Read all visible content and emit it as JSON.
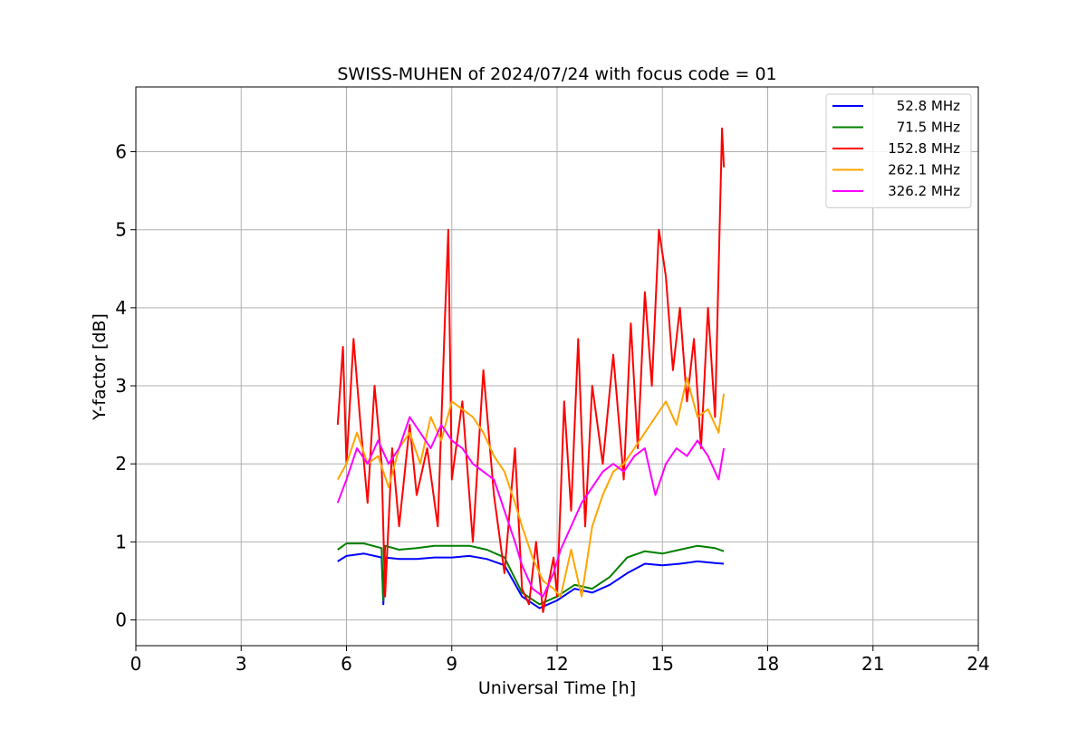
{
  "chart_data": {
    "type": "line",
    "title": "SWISS-MUHEN of 2024/07/24 with focus code = 01",
    "xlabel": "Universal Time [h]",
    "ylabel": "Y-factor [dB]",
    "xlim": [
      0,
      24
    ],
    "ylim": [
      -0.33,
      6.83
    ],
    "xticks": [
      0,
      3,
      6,
      9,
      12,
      15,
      18,
      21,
      24
    ],
    "yticks": [
      0,
      1,
      2,
      3,
      4,
      5,
      6
    ],
    "grid": true,
    "legend_position": "top-right",
    "series": [
      {
        "name": "52.8 MHz",
        "color": "#0000ff",
        "x": [
          5.75,
          6.0,
          6.5,
          7.0,
          7.05,
          7.1,
          7.5,
          8.0,
          8.5,
          9.0,
          9.5,
          10.0,
          10.5,
          11.0,
          11.5,
          12.0,
          12.5,
          13.0,
          13.5,
          14.0,
          14.5,
          15.0,
          15.5,
          16.0,
          16.5,
          16.75
        ],
        "y": [
          0.75,
          0.82,
          0.85,
          0.8,
          0.2,
          0.8,
          0.78,
          0.78,
          0.8,
          0.8,
          0.82,
          0.78,
          0.7,
          0.3,
          0.15,
          0.25,
          0.4,
          0.35,
          0.45,
          0.6,
          0.72,
          0.7,
          0.72,
          0.75,
          0.73,
          0.72
        ]
      },
      {
        "name": "71.5 MHz",
        "color": "#008000",
        "x": [
          5.75,
          6.0,
          6.5,
          7.0,
          7.05,
          7.1,
          7.5,
          8.0,
          8.5,
          9.0,
          9.5,
          10.0,
          10.5,
          11.0,
          11.5,
          12.0,
          12.5,
          13.0,
          13.5,
          14.0,
          14.5,
          15.0,
          15.5,
          16.0,
          16.5,
          16.75
        ],
        "y": [
          0.9,
          0.98,
          0.98,
          0.92,
          0.25,
          0.95,
          0.9,
          0.92,
          0.95,
          0.95,
          0.95,
          0.9,
          0.8,
          0.35,
          0.2,
          0.3,
          0.45,
          0.4,
          0.55,
          0.8,
          0.88,
          0.85,
          0.9,
          0.95,
          0.92,
          0.88
        ]
      },
      {
        "name": "152.8 MHz",
        "color": "#ff0000",
        "x": [
          5.75,
          5.9,
          6.0,
          6.2,
          6.4,
          6.6,
          6.8,
          7.0,
          7.1,
          7.3,
          7.5,
          7.8,
          8.0,
          8.3,
          8.6,
          8.8,
          8.9,
          9.0,
          9.3,
          9.6,
          9.9,
          10.2,
          10.5,
          10.8,
          11.0,
          11.2,
          11.4,
          11.6,
          11.9,
          12.0,
          12.2,
          12.4,
          12.6,
          12.8,
          13.0,
          13.3,
          13.6,
          13.9,
          14.1,
          14.3,
          14.5,
          14.7,
          14.9,
          15.1,
          15.3,
          15.5,
          15.7,
          15.9,
          16.1,
          16.3,
          16.5,
          16.7,
          16.75
        ],
        "y": [
          2.5,
          3.5,
          2.0,
          3.6,
          2.5,
          1.5,
          3.0,
          2.0,
          0.3,
          2.2,
          1.2,
          2.5,
          1.6,
          2.2,
          1.2,
          3.8,
          5.0,
          1.8,
          2.8,
          1.0,
          3.2,
          1.6,
          0.6,
          2.2,
          0.4,
          0.2,
          1.0,
          0.1,
          0.8,
          0.3,
          2.8,
          1.4,
          3.6,
          1.2,
          3.0,
          2.0,
          3.4,
          1.8,
          3.8,
          2.2,
          4.2,
          3.0,
          5.0,
          4.4,
          3.2,
          4.0,
          2.8,
          3.6,
          2.2,
          4.0,
          2.6,
          6.3,
          5.8
        ]
      },
      {
        "name": "262.1 MHz",
        "color": "#ffa500",
        "x": [
          5.75,
          6.0,
          6.3,
          6.6,
          6.9,
          7.2,
          7.5,
          7.8,
          8.1,
          8.4,
          8.7,
          9.0,
          9.3,
          9.6,
          9.9,
          10.2,
          10.5,
          10.8,
          11.0,
          11.3,
          11.6,
          11.9,
          12.1,
          12.4,
          12.7,
          13.0,
          13.3,
          13.6,
          13.9,
          14.2,
          14.5,
          14.8,
          15.1,
          15.4,
          15.7,
          16.0,
          16.3,
          16.6,
          16.75
        ],
        "y": [
          1.8,
          2.0,
          2.4,
          2.0,
          2.1,
          1.7,
          2.2,
          2.4,
          2.0,
          2.6,
          2.3,
          2.8,
          2.7,
          2.6,
          2.4,
          2.1,
          1.9,
          1.5,
          1.2,
          0.8,
          0.5,
          0.4,
          0.3,
          0.9,
          0.3,
          1.2,
          1.6,
          1.9,
          2.0,
          2.2,
          2.4,
          2.6,
          2.8,
          2.5,
          3.1,
          2.6,
          2.7,
          2.4,
          2.9
        ]
      },
      {
        "name": "326.2 MHz",
        "color": "#ff00ff",
        "x": [
          5.75,
          6.0,
          6.3,
          6.6,
          6.9,
          7.2,
          7.5,
          7.8,
          8.1,
          8.4,
          8.7,
          9.0,
          9.3,
          9.6,
          9.9,
          10.2,
          10.5,
          10.8,
          11.0,
          11.3,
          11.6,
          11.9,
          12.1,
          12.4,
          12.7,
          13.0,
          13.3,
          13.6,
          13.9,
          14.2,
          14.5,
          14.8,
          15.1,
          15.4,
          15.7,
          16.0,
          16.3,
          16.6,
          16.75
        ],
        "y": [
          1.5,
          1.8,
          2.2,
          2.0,
          2.3,
          2.0,
          2.2,
          2.6,
          2.4,
          2.2,
          2.5,
          2.3,
          2.2,
          2.0,
          1.9,
          1.8,
          1.4,
          1.0,
          0.7,
          0.4,
          0.3,
          0.6,
          0.9,
          1.2,
          1.5,
          1.7,
          1.9,
          2.0,
          1.9,
          2.1,
          2.2,
          1.6,
          2.0,
          2.2,
          2.1,
          2.3,
          2.1,
          1.8,
          2.2
        ]
      }
    ]
  }
}
